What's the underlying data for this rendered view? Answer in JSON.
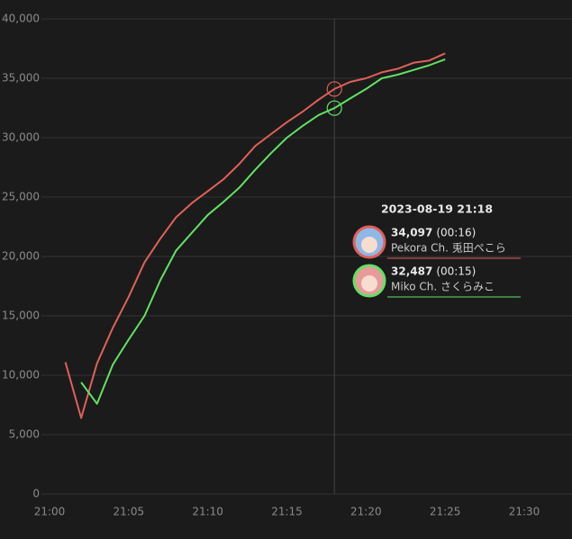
{
  "chart_data": {
    "type": "line",
    "x": [
      "21:01",
      "21:02",
      "21:03",
      "21:04",
      "21:05",
      "21:06",
      "21:07",
      "21:08",
      "21:09",
      "21:10",
      "21:11",
      "21:12",
      "21:13",
      "21:14",
      "21:15",
      "21:16",
      "21:17",
      "21:18",
      "21:19",
      "21:20",
      "21:21",
      "21:22",
      "21:23",
      "21:24",
      "21:25"
    ],
    "xlim": [
      "21:00",
      "21:30"
    ],
    "xticks": [
      "21:00",
      "21:05",
      "21:10",
      "21:15",
      "21:20",
      "21:25",
      "21:30"
    ],
    "ylim": [
      0,
      40000
    ],
    "yticks": [
      0,
      {
        "value": 5000,
        "label": "5,000"
      },
      {
        "value": 10000,
        "label": "10,000"
      },
      {
        "value": 15000,
        "label": "15,000"
      },
      {
        "value": 20000,
        "label": "20,000"
      },
      {
        "value": 25000,
        "label": "25,000"
      },
      {
        "value": 30000,
        "label": "30,000"
      },
      {
        "value": 35000,
        "label": "35,000"
      },
      {
        "value": 40000,
        "label": "40,000"
      }
    ],
    "grid": true,
    "hover_x": "21:18",
    "tooltip_title": "2023-08-19 21:18",
    "series": [
      {
        "name": "Pekora Ch. 兎田ぺこら",
        "color": "#e0605a",
        "tooltip_note": "(00:16)",
        "values": [
          11100,
          6400,
          11000,
          14000,
          16600,
          19500,
          21500,
          23300,
          24500,
          25500,
          26500,
          27800,
          29300,
          30300,
          31300,
          32200,
          33200,
          34097,
          34700,
          35000,
          35500,
          35800,
          36300,
          36500,
          37100
        ],
        "value_labels": [
          null,
          null,
          null,
          null,
          null,
          null,
          null,
          null,
          null,
          null,
          null,
          null,
          null,
          null,
          null,
          null,
          null,
          "34,097",
          null,
          null,
          null,
          null,
          null,
          null,
          null
        ]
      },
      {
        "name": "Miko Ch. さくらみこ",
        "color": "#62e066",
        "tooltip_note": "(00:15)",
        "values": [
          null,
          9400,
          7600,
          10900,
          13000,
          15000,
          18000,
          20500,
          22000,
          23500,
          24600,
          25800,
          27300,
          28700,
          30000,
          31000,
          31900,
          32487,
          33300,
          34100,
          35000,
          35300,
          35700,
          36100,
          36600
        ],
        "value_labels": [
          null,
          null,
          null,
          null,
          null,
          null,
          null,
          null,
          null,
          null,
          null,
          null,
          null,
          null,
          null,
          null,
          null,
          "32,487",
          null,
          null,
          null,
          null,
          null,
          null,
          null
        ]
      }
    ]
  }
}
